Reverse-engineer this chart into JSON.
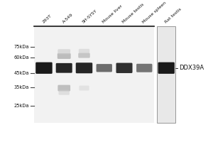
{
  "lane_labels": [
    "293T",
    "A-549",
    "SH-SY5Y",
    "Mouse liver",
    "Mouse testis",
    "Mouse spleen",
    "Rat testis"
  ],
  "mw_labels": [
    "75kDa",
    "60kDa",
    "45kDa",
    "35kDa",
    "25kDa"
  ],
  "label_annotation": "DDX39A",
  "gel_bg": "#f2f2f2",
  "right_panel_bg": "#e8e8e8",
  "band_dark": "#1a1a1a",
  "band_med": "#555555",
  "band_light": "#aaaaaa",
  "band_vlight": "#cccccc",
  "top_line_color": "#111111",
  "mw_line_color": "#444444",
  "text_color": "#111111"
}
